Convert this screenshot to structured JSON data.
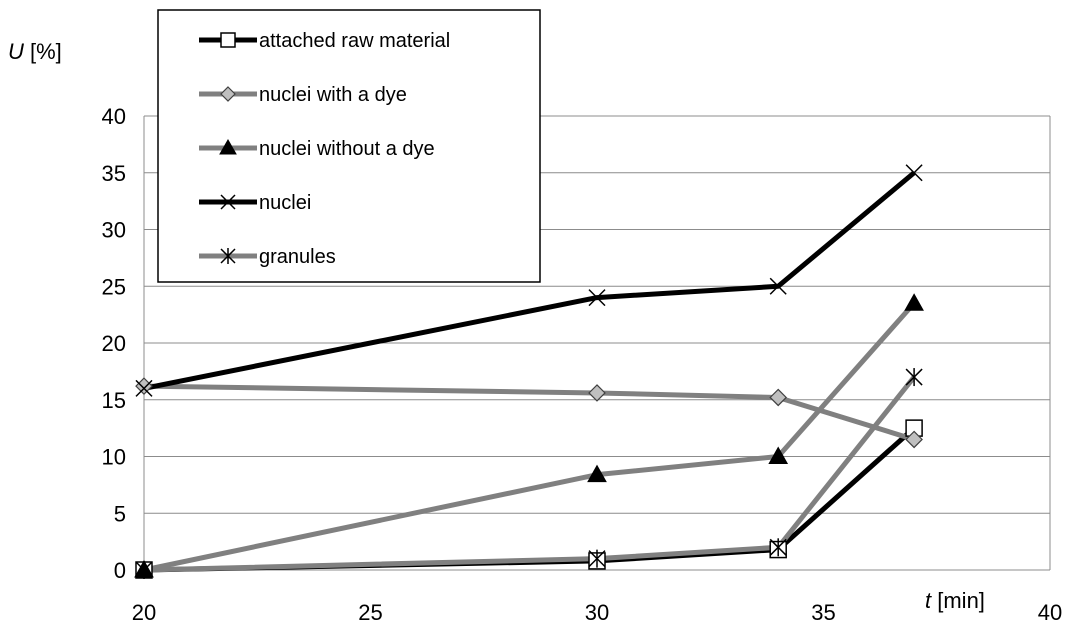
{
  "chart_data": {
    "type": "line",
    "title": "",
    "ylabel_var": "U",
    "ylabel_unit": " [%]",
    "xlabel_var": "t",
    "xlabel_unit": " [min]",
    "xlim": [
      20,
      40
    ],
    "ylim": [
      0,
      40
    ],
    "xticks": [
      20,
      25,
      30,
      35,
      40
    ],
    "yticks": [
      0,
      5,
      10,
      15,
      20,
      25,
      30,
      35,
      40
    ],
    "grid": true,
    "legend_position": "top-left",
    "x": [
      20,
      30,
      34,
      37
    ],
    "series": [
      {
        "name": "attached raw material",
        "values": [
          0,
          0.8,
          1.8,
          12.5
        ],
        "color": "#000000",
        "marker": "open-square"
      },
      {
        "name": "nuclei with a dye",
        "values": [
          16.2,
          15.6,
          15.2,
          11.5
        ],
        "color": "#808080",
        "marker": "diamond"
      },
      {
        "name": "nuclei without a dye",
        "values": [
          0,
          8.4,
          10,
          23.5
        ],
        "color": "#808080",
        "marker": "filled-triangle"
      },
      {
        "name": "nuclei",
        "values": [
          16,
          24,
          25,
          35
        ],
        "color": "#000000",
        "marker": "x"
      },
      {
        "name": "granules",
        "values": [
          0,
          1,
          2,
          17
        ],
        "color": "#808080",
        "marker": "star"
      }
    ]
  }
}
